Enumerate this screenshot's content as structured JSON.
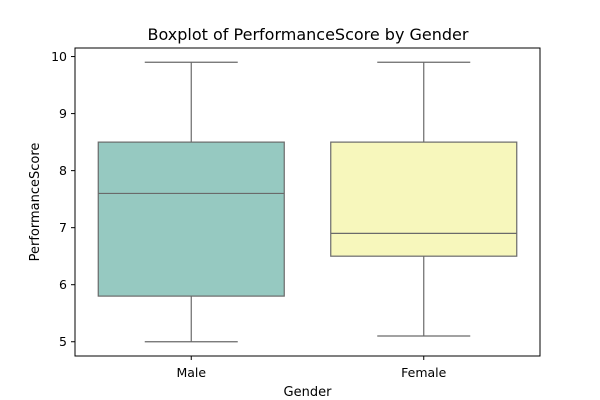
{
  "chart_data": {
    "type": "box",
    "title": "Boxplot of PerformanceScore by Gender",
    "xlabel": "Gender",
    "ylabel": "PerformanceScore",
    "categories": [
      "Male",
      "Female"
    ],
    "boxes": [
      {
        "category": "Male",
        "min": 5.0,
        "q1": 5.8,
        "median": 7.6,
        "q3": 8.5,
        "max": 9.9,
        "color": "#96c9c1"
      },
      {
        "category": "Female",
        "min": 5.1,
        "q1": 6.5,
        "median": 6.9,
        "q3": 8.5,
        "max": 9.9,
        "color": "#f7f7bc"
      }
    ],
    "yticks": [
      5,
      6,
      7,
      8,
      9,
      10
    ],
    "ylim": [
      4.75,
      10.15
    ],
    "grid": false,
    "line_color": "#6a6a6a"
  }
}
